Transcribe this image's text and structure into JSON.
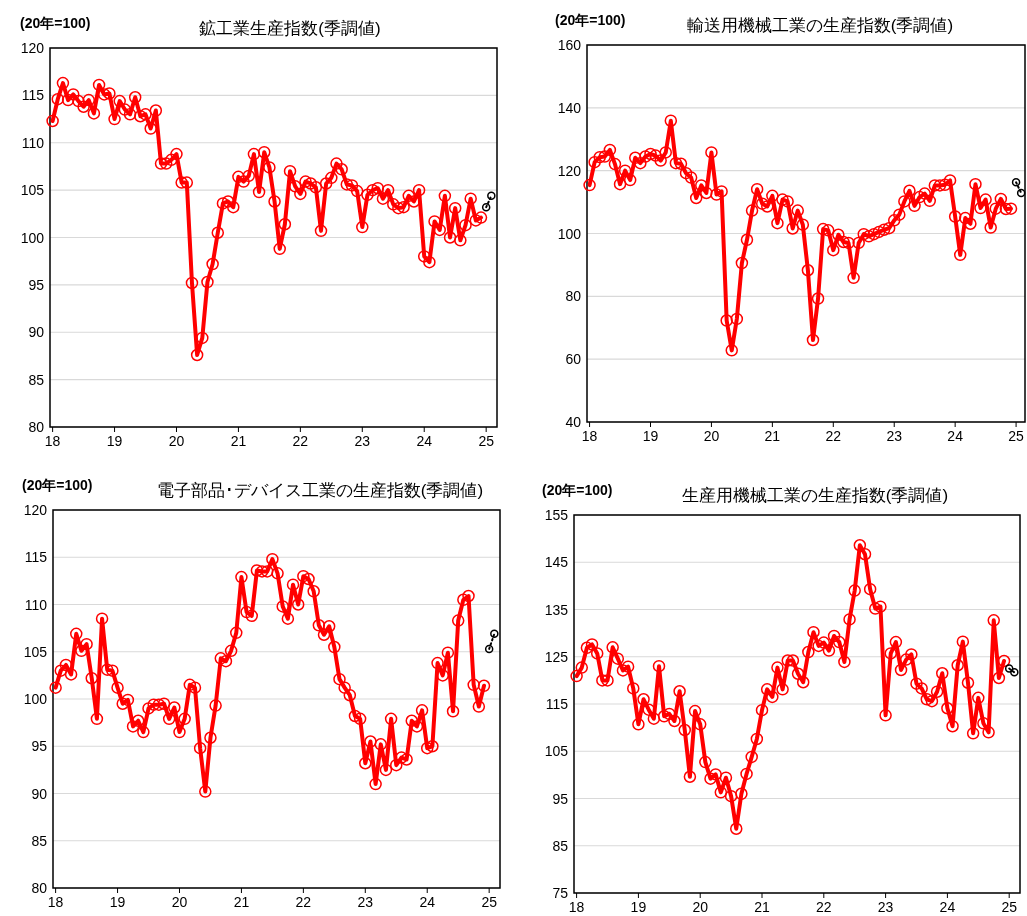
{
  "chart_data": [
    {
      "type": "line",
      "title": "鉱工業生産指数(季調値)",
      "ylabel": "(20年=100)",
      "grid": "y",
      "ylim": [
        80,
        120
      ],
      "yticks": [
        80,
        85,
        90,
        95,
        100,
        105,
        110,
        115,
        120
      ],
      "xlim": [
        "2017-12-16",
        "2025-03-04"
      ],
      "xticks": [
        {
          "value": "2018-01-01",
          "label": "18"
        },
        {
          "value": "2019-01-01",
          "label": "19"
        },
        {
          "value": "2020-01-01",
          "label": "20"
        },
        {
          "value": "2021-01-01",
          "label": "21"
        },
        {
          "value": "2022-01-01",
          "label": "22"
        },
        {
          "value": "2023-01-01",
          "label": "23"
        },
        {
          "value": "2024-01-01",
          "label": "24"
        },
        {
          "value": "2025-01-01",
          "label": "25"
        }
      ],
      "x": [
        "2018-01",
        "2018-02",
        "2018-03",
        "2018-04",
        "2018-05",
        "2018-06",
        "2018-07",
        "2018-08",
        "2018-09",
        "2018-10",
        "2018-11",
        "2018-12",
        "2019-01",
        "2019-02",
        "2019-03",
        "2019-04",
        "2019-05",
        "2019-06",
        "2019-07",
        "2019-08",
        "2019-09",
        "2019-10",
        "2019-11",
        "2019-12",
        "2020-01",
        "2020-02",
        "2020-03",
        "2020-04",
        "2020-05",
        "2020-06",
        "2020-07",
        "2020-08",
        "2020-09",
        "2020-10",
        "2020-11",
        "2020-12",
        "2021-01",
        "2021-02",
        "2021-03",
        "2021-04",
        "2021-05",
        "2021-06",
        "2021-07",
        "2021-08",
        "2021-09",
        "2021-10",
        "2021-11",
        "2021-12",
        "2022-01",
        "2022-02",
        "2022-03",
        "2022-04",
        "2022-05",
        "2022-06",
        "2022-07",
        "2022-08",
        "2022-09",
        "2022-10",
        "2022-11",
        "2022-12",
        "2023-01",
        "2023-02",
        "2023-03",
        "2023-04",
        "2023-05",
        "2023-06",
        "2023-07",
        "2023-08",
        "2023-09",
        "2023-10",
        "2023-11",
        "2023-12",
        "2024-01",
        "2024-02",
        "2024-03",
        "2024-04",
        "2024-05",
        "2024-06",
        "2024-07",
        "2024-08",
        "2024-09",
        "2024-10",
        "2024-11",
        "2024-12"
      ],
      "series": [
        {
          "color": "#ff0000",
          "marker": "circle",
          "line_style": "solid",
          "values": [
            112.3,
            114.6,
            116.3,
            114.5,
            115.1,
            114.4,
            113.8,
            114.5,
            113.1,
            116.1,
            115.1,
            115.2,
            112.5,
            114.4,
            113.5,
            113.0,
            114.8,
            112.8,
            113.0,
            111.5,
            113.4,
            107.8,
            107.8,
            108.2,
            108.8,
            105.8,
            105.8,
            95.2,
            87.6,
            89.4,
            95.3,
            97.2,
            100.5,
            103.6,
            103.8,
            103.2,
            106.4,
            105.9,
            106.5,
            108.8,
            104.8,
            109.0,
            107.4,
            103.8,
            98.8,
            101.4,
            107.0,
            105.4,
            104.6,
            105.9,
            105.7,
            105.3,
            100.7,
            105.7,
            106.3,
            107.8,
            107.2,
            105.6,
            105.5,
            104.9,
            101.1,
            104.5,
            105.0,
            105.2,
            104.1,
            105.0,
            103.5,
            103.1,
            103.2,
            104.4,
            103.8,
            105.0,
            98.0,
            97.4,
            101.7,
            100.8,
            104.4,
            100.0,
            103.1,
            99.7,
            101.3,
            104.1,
            101.8,
            102.1
          ]
        },
        {
          "color": "#000000",
          "marker": "circle",
          "line_style": "dotted",
          "x": [
            "2025-01",
            "2025-02"
          ],
          "values": [
            103.2,
            104.4
          ]
        }
      ]
    },
    {
      "type": "line",
      "title": "輸送用機械工業の生産指数(季調値)",
      "ylabel": "(20年=100)",
      "grid": "y",
      "ylim": [
        40,
        160
      ],
      "yticks": [
        40,
        60,
        80,
        100,
        120,
        140,
        160
      ],
      "xlim": [
        "2017-12-16",
        "2025-02-24"
      ],
      "xticks": [
        {
          "value": "2018-01-01",
          "label": "18"
        },
        {
          "value": "2019-01-01",
          "label": "19"
        },
        {
          "value": "2020-01-01",
          "label": "20"
        },
        {
          "value": "2021-01-01",
          "label": "21"
        },
        {
          "value": "2022-01-01",
          "label": "22"
        },
        {
          "value": "2023-01-01",
          "label": "23"
        },
        {
          "value": "2024-01-01",
          "label": "24"
        },
        {
          "value": "2025-01-01",
          "label": "25"
        }
      ],
      "x": [
        "2018-01",
        "2018-02",
        "2018-03",
        "2018-04",
        "2018-05",
        "2018-06",
        "2018-07",
        "2018-08",
        "2018-09",
        "2018-10",
        "2018-11",
        "2018-12",
        "2019-01",
        "2019-02",
        "2019-03",
        "2019-04",
        "2019-05",
        "2019-06",
        "2019-07",
        "2019-08",
        "2019-09",
        "2019-10",
        "2019-11",
        "2019-12",
        "2020-01",
        "2020-02",
        "2020-03",
        "2020-04",
        "2020-05",
        "2020-06",
        "2020-07",
        "2020-08",
        "2020-09",
        "2020-10",
        "2020-11",
        "2020-12",
        "2021-01",
        "2021-02",
        "2021-03",
        "2021-04",
        "2021-05",
        "2021-06",
        "2021-07",
        "2021-08",
        "2021-09",
        "2021-10",
        "2021-11",
        "2021-12",
        "2022-01",
        "2022-02",
        "2022-03",
        "2022-04",
        "2022-05",
        "2022-06",
        "2022-07",
        "2022-08",
        "2022-09",
        "2022-10",
        "2022-11",
        "2022-12",
        "2023-01",
        "2023-02",
        "2023-03",
        "2023-04",
        "2023-05",
        "2023-06",
        "2023-07",
        "2023-08",
        "2023-09",
        "2023-10",
        "2023-11",
        "2023-12",
        "2024-01",
        "2024-02",
        "2024-03",
        "2024-04",
        "2024-05",
        "2024-06",
        "2024-07",
        "2024-08",
        "2024-09",
        "2024-10",
        "2024-11",
        "2024-12"
      ],
      "series": [
        {
          "color": "#ff0000",
          "marker": "circle",
          "line_style": "solid",
          "values": [
            115.4,
            122.7,
            124.3,
            124.5,
            126.6,
            122.1,
            115.7,
            120.0,
            117.0,
            124.1,
            122.4,
            124.5,
            125.3,
            124.8,
            123.2,
            125.8,
            135.9,
            122.4,
            122.2,
            119.2,
            117.8,
            111.3,
            115.3,
            112.9,
            125.8,
            112.4,
            113.4,
            72.3,
            62.8,
            72.8,
            90.6,
            98.0,
            107.3,
            114.1,
            109.5,
            108.6,
            112.0,
            103.3,
            110.8,
            110.2,
            101.6,
            107.3,
            102.8,
            88.3,
            66.1,
            79.3,
            101.4,
            101.0,
            94.7,
            99.6,
            97.3,
            97.0,
            85.9,
            97.0,
            99.8,
            99.1,
            99.8,
            100.5,
            101.2,
            101.7,
            104.2,
            106.0,
            110.2,
            113.6,
            108.8,
            111.6,
            112.7,
            110.4,
            115.3,
            115.3,
            115.5,
            116.9,
            105.4,
            93.2,
            104.9,
            103.1,
            115.7,
            108.1,
            110.8,
            101.9,
            107.9,
            111.0,
            107.8,
            107.9
          ]
        },
        {
          "color": "#000000",
          "marker": "circle",
          "line_style": "dotted",
          "x": [
            "2025-01",
            "2025-02"
          ],
          "values": [
            116.3,
            112.9
          ]
        }
      ]
    },
    {
      "type": "line",
      "title": "電子部品･デバイス工業の生産指数(季調値)",
      "ylabel": "(20年=100)",
      "grid": "y",
      "ylim": [
        80,
        120
      ],
      "yticks": [
        80,
        85,
        90,
        95,
        100,
        105,
        110,
        115,
        120
      ],
      "xlim": [
        "2017-12-16",
        "2025-03-04"
      ],
      "xticks": [
        {
          "value": "2018-01-01",
          "label": "18"
        },
        {
          "value": "2019-01-01",
          "label": "19"
        },
        {
          "value": "2020-01-01",
          "label": "20"
        },
        {
          "value": "2021-01-01",
          "label": "21"
        },
        {
          "value": "2022-01-01",
          "label": "22"
        },
        {
          "value": "2023-01-01",
          "label": "23"
        },
        {
          "value": "2024-01-01",
          "label": "24"
        },
        {
          "value": "2025-01-01",
          "label": "25"
        }
      ],
      "x": [
        "2018-01",
        "2018-02",
        "2018-03",
        "2018-04",
        "2018-05",
        "2018-06",
        "2018-07",
        "2018-08",
        "2018-09",
        "2018-10",
        "2018-11",
        "2018-12",
        "2019-01",
        "2019-02",
        "2019-03",
        "2019-04",
        "2019-05",
        "2019-06",
        "2019-07",
        "2019-08",
        "2019-09",
        "2019-10",
        "2019-11",
        "2019-12",
        "2020-01",
        "2020-02",
        "2020-03",
        "2020-04",
        "2020-05",
        "2020-06",
        "2020-07",
        "2020-08",
        "2020-09",
        "2020-10",
        "2020-11",
        "2020-12",
        "2021-01",
        "2021-02",
        "2021-03",
        "2021-04",
        "2021-05",
        "2021-06",
        "2021-07",
        "2021-08",
        "2021-09",
        "2021-10",
        "2021-11",
        "2021-12",
        "2022-01",
        "2022-02",
        "2022-03",
        "2022-04",
        "2022-05",
        "2022-06",
        "2022-07",
        "2022-08",
        "2022-09",
        "2022-10",
        "2022-11",
        "2022-12",
        "2023-01",
        "2023-02",
        "2023-03",
        "2023-04",
        "2023-05",
        "2023-06",
        "2023-07",
        "2023-08",
        "2023-09",
        "2023-10",
        "2023-11",
        "2023-12",
        "2024-01",
        "2024-02",
        "2024-03",
        "2024-04",
        "2024-05",
        "2024-06",
        "2024-07",
        "2024-08",
        "2024-09",
        "2024-10",
        "2024-11",
        "2024-12"
      ],
      "series": [
        {
          "color": "#ff0000",
          "marker": "circle",
          "line_style": "solid",
          "values": [
            101.2,
            103.0,
            103.6,
            102.6,
            106.9,
            105.1,
            105.8,
            102.2,
            97.9,
            108.5,
            103.1,
            103.0,
            101.2,
            99.5,
            99.9,
            97.1,
            97.7,
            96.5,
            99.0,
            99.4,
            99.4,
            99.5,
            97.9,
            99.1,
            96.5,
            97.9,
            101.5,
            101.2,
            94.8,
            90.2,
            95.9,
            99.3,
            104.3,
            104.0,
            105.1,
            107.0,
            112.9,
            109.2,
            108.8,
            113.6,
            113.5,
            113.5,
            114.8,
            113.3,
            109.8,
            108.5,
            112.1,
            110.0,
            113.0,
            112.7,
            111.4,
            107.8,
            106.8,
            107.7,
            105.5,
            102.1,
            101.2,
            100.4,
            98.2,
            97.9,
            93.2,
            95.5,
            91.0,
            95.2,
            92.5,
            97.9,
            93.0,
            93.8,
            93.6,
            97.7,
            97.1,
            98.8,
            94.8,
            95.0,
            103.8,
            102.5,
            104.9,
            98.7,
            108.3,
            110.5,
            110.9,
            101.5,
            99.2,
            101.4
          ]
        },
        {
          "color": "#000000",
          "marker": "circle",
          "line_style": "dotted",
          "x": [
            "2025-01",
            "2025-02"
          ],
          "values": [
            105.3,
            106.9
          ]
        }
      ]
    },
    {
      "type": "line",
      "title": "生産用機械工業の生産指数(季調値)",
      "ylabel": "(20年=100)",
      "grid": "y",
      "ylim": [
        75,
        155
      ],
      "yticks": [
        75,
        85,
        95,
        105,
        115,
        125,
        135,
        145,
        155
      ],
      "xlim": [
        "2017-12-16",
        "2025-03-04"
      ],
      "xticks": [
        {
          "value": "2018-01-01",
          "label": "18"
        },
        {
          "value": "2019-01-01",
          "label": "19"
        },
        {
          "value": "2020-01-01",
          "label": "20"
        },
        {
          "value": "2021-01-01",
          "label": "21"
        },
        {
          "value": "2022-01-01",
          "label": "22"
        },
        {
          "value": "2023-01-01",
          "label": "23"
        },
        {
          "value": "2024-01-01",
          "label": "24"
        },
        {
          "value": "2025-01-01",
          "label": "25"
        }
      ],
      "x": [
        "2018-01",
        "2018-02",
        "2018-03",
        "2018-04",
        "2018-05",
        "2018-06",
        "2018-07",
        "2018-08",
        "2018-09",
        "2018-10",
        "2018-11",
        "2018-12",
        "2019-01",
        "2019-02",
        "2019-03",
        "2019-04",
        "2019-05",
        "2019-06",
        "2019-07",
        "2019-08",
        "2019-09",
        "2019-10",
        "2019-11",
        "2019-12",
        "2020-01",
        "2020-02",
        "2020-03",
        "2020-04",
        "2020-05",
        "2020-06",
        "2020-07",
        "2020-08",
        "2020-09",
        "2020-10",
        "2020-11",
        "2020-12",
        "2021-01",
        "2021-02",
        "2021-03",
        "2021-04",
        "2021-05",
        "2021-06",
        "2021-07",
        "2021-08",
        "2021-09",
        "2021-10",
        "2021-11",
        "2021-12",
        "2022-01",
        "2022-02",
        "2022-03",
        "2022-04",
        "2022-05",
        "2022-06",
        "2022-07",
        "2022-08",
        "2022-09",
        "2022-10",
        "2022-11",
        "2022-12",
        "2023-01",
        "2023-02",
        "2023-03",
        "2023-04",
        "2023-05",
        "2023-06",
        "2023-07",
        "2023-08",
        "2023-09",
        "2023-10",
        "2023-11",
        "2023-12",
        "2024-01",
        "2024-02",
        "2024-03",
        "2024-04",
        "2024-05",
        "2024-06",
        "2024-07",
        "2024-08",
        "2024-09",
        "2024-10",
        "2024-11",
        "2024-12"
      ],
      "series": [
        {
          "color": "#ff0000",
          "marker": "circle",
          "line_style": "solid",
          "values": [
            120.9,
            122.7,
            126.9,
            127.6,
            125.7,
            120.0,
            120.0,
            127.0,
            124.6,
            122.1,
            122.9,
            118.3,
            110.7,
            116.0,
            113.8,
            111.9,
            123.0,
            112.4,
            112.9,
            111.4,
            117.7,
            109.5,
            99.6,
            113.5,
            110.7,
            102.7,
            99.2,
            100.1,
            96.3,
            99.4,
            95.5,
            88.6,
            96.0,
            100.2,
            103.8,
            107.6,
            113.7,
            118.1,
            116.5,
            122.7,
            118.1,
            124.2,
            124.2,
            121.4,
            119.6,
            126.0,
            130.2,
            127.3,
            128.0,
            126.3,
            129.4,
            128.1,
            123.9,
            132.9,
            139.0,
            148.6,
            146.7,
            139.3,
            135.2,
            135.6,
            112.6,
            125.7,
            128.1,
            122.2,
            124.4,
            125.5,
            119.3,
            118.3,
            116.0,
            115.6,
            117.6,
            121.5,
            114.1,
            110.3,
            123.2,
            128.2,
            119.5,
            108.8,
            116.3,
            110.9,
            109.0,
            132.7,
            120.5,
            124.1
          ]
        },
        {
          "color": "#000000",
          "marker": "circle",
          "line_style": "dotted",
          "x": [
            "2025-01",
            "2025-02"
          ],
          "values": [
            122.5,
            121.7
          ]
        }
      ]
    }
  ]
}
